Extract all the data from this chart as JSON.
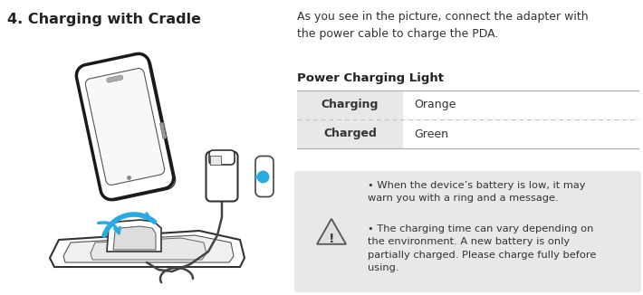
{
  "title": "4. Charging with Cradle",
  "title_fontsize": 11.5,
  "body_text": "As you see in the picture, connect the adapter with\nthe power cable to charge the PDA.",
  "body_fontsize": 9.0,
  "section_label": "Power Charging Light",
  "section_fontsize": 9.5,
  "table_rows": [
    {
      "label": "Charging",
      "value": "Orange"
    },
    {
      "label": "Charged",
      "value": "Green"
    }
  ],
  "table_header_bg": "#e8e8e8",
  "table_line_color": "#bbbbbb",
  "table_outer_line_color": "#aaaaaa",
  "table_label_fontsize": 9,
  "table_value_fontsize": 9,
  "note_box_bg": "#e8e8e8",
  "note_text1": "When the device’s battery is low, it may\nwarn you with a ring and a message.",
  "note_text2": "The charging time can vary depending on\nthe environment. A new battery is only\npartially charged. Please charge fully before\nusing.",
  "note_fontsize": 8.2,
  "bg_color": "#ffffff",
  "text_color": "#333333",
  "dark_color": "#222222",
  "figsize": [
    7.1,
    3.26
  ],
  "dpi": 100
}
